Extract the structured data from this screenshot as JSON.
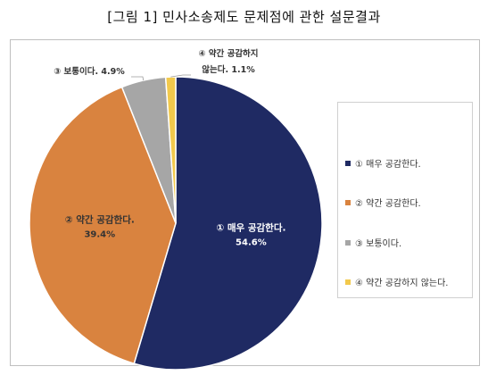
{
  "figure_title": "[그림 1] 민사소송제도 문제점에 관한 설문결과",
  "chart_data": {
    "type": "pie",
    "title": "",
    "slices": [
      {
        "name": "① 매우 공감한다.",
        "value": 54.6,
        "label": "① 매우 공감한다.",
        "value_label": "54.6%",
        "color": "#1f2a63"
      },
      {
        "name": "② 약간 공감한다.",
        "value": 39.4,
        "label": "② 약간 공감한다.",
        "value_label": "39.4%",
        "color": "#d9833f"
      },
      {
        "name": "③ 보통이다.",
        "value": 4.9,
        "label": "③ 보통이다.",
        "value_label": "4.9%",
        "color": "#a6a6a6"
      },
      {
        "name": "④ 약간 공감하지 않는다.",
        "value": 1.1,
        "label": "④ 약간 공감하지 않는다.",
        "value_label": "1.1%",
        "color": "#f2c94c"
      }
    ],
    "outside_labels": {
      "slice3": "③ 보통이다. 4.9%",
      "slice4_line1": "④ 약간 공감하지",
      "slice4_line2": "않는다. 1.1%"
    },
    "legend": {
      "placement": "right",
      "entries": [
        "① 매우 공감한다.",
        "② 약간 공감한다.",
        "③ 보통이다.",
        "④ 약간 공감하지 않는다."
      ]
    }
  }
}
